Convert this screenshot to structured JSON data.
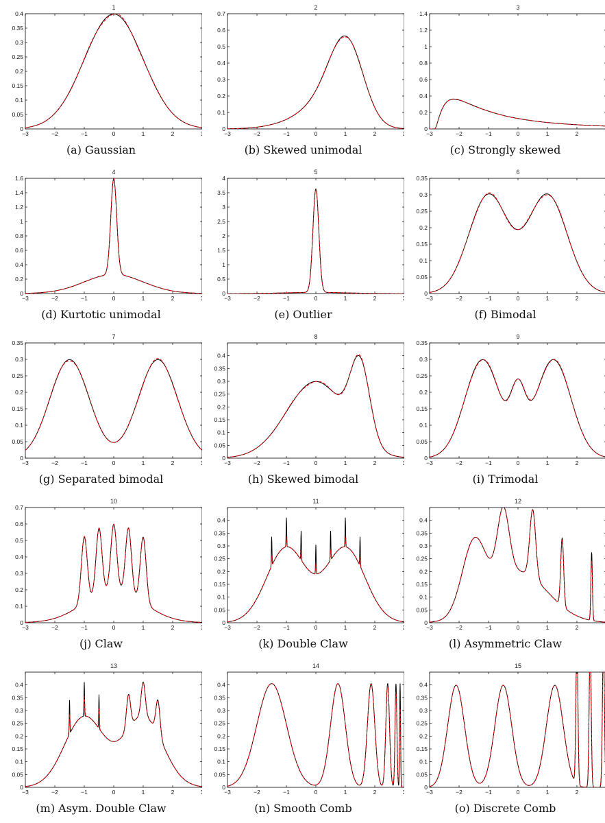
{
  "figure": {
    "colors": {
      "true_density": "#000000",
      "estimate": "#ff0000",
      "axes": "#000000"
    },
    "line_styles": {
      "true_density": "solid",
      "estimate": "dashed"
    }
  },
  "chart_data": [
    {
      "id": "p1",
      "type": "line",
      "title": "1",
      "caption": "(a)  Gaussian",
      "xlim": [
        -3,
        3
      ],
      "ylim": [
        0,
        0.4
      ],
      "xticks": [
        "−3",
        "−2",
        "−1",
        "0",
        "1",
        "2",
        "3"
      ],
      "xtick_values": [
        -3,
        -2,
        -1,
        0,
        1,
        2,
        3
      ],
      "yticks": [
        "0",
        "0.05",
        "0.1",
        "0.15",
        "0.2",
        "0.25",
        "0.3",
        "0.35",
        "0.4"
      ],
      "ytick_values": [
        0,
        0.05,
        0.1,
        0.15,
        0.2,
        0.25,
        0.3,
        0.35,
        0.4
      ],
      "density": {
        "kind": "normal",
        "components": [
          [
            1,
            0,
            1
          ]
        ]
      },
      "series": [
        {
          "role": "true_density"
        },
        {
          "role": "estimate"
        }
      ]
    },
    {
      "id": "p2",
      "type": "line",
      "title": "2",
      "caption": "(b)  Skewed unimodal",
      "xlim": [
        -3,
        3
      ],
      "ylim": [
        0,
        0.7
      ],
      "xticks": [
        "−3",
        "−2",
        "−1",
        "0",
        "1",
        "2",
        "3"
      ],
      "xtick_values": [
        -3,
        -2,
        -1,
        0,
        1,
        2,
        3
      ],
      "yticks": [
        "0",
        "0.1",
        "0.2",
        "0.3",
        "0.4",
        "0.5",
        "0.6",
        "0.7"
      ],
      "ytick_values": [
        0,
        0.1,
        0.2,
        0.3,
        0.4,
        0.5,
        0.6,
        0.7
      ],
      "density": {
        "kind": "normal",
        "components": [
          [
            0.2,
            0,
            1
          ],
          [
            0.2,
            0.5,
            0.6667
          ],
          [
            0.6,
            1.0833,
            0.5556
          ]
        ]
      },
      "series": [
        {
          "role": "true_density"
        },
        {
          "role": "estimate"
        }
      ]
    },
    {
      "id": "p3",
      "type": "line",
      "title": "3",
      "caption": "(c)  Strongly skewed",
      "xlim": [
        -3,
        3
      ],
      "ylim": [
        0,
        1.4
      ],
      "xticks": [
        "−3",
        "−2",
        "−1",
        "0",
        "1",
        "2"
      ],
      "xtick_values": [
        -3,
        -2,
        -1,
        0,
        1,
        2
      ],
      "yticks": [
        "0",
        "0.2",
        "0.4",
        "0.6",
        "0.8",
        "1",
        "1.2",
        "1.4"
      ],
      "ytick_values": [
        0,
        0.2,
        0.4,
        0.6,
        0.8,
        1,
        1.2,
        1.4
      ],
      "density": {
        "kind": "lognormal",
        "shift": -2.85,
        "sigma": 1,
        "mu": 0.6
      },
      "series": [
        {
          "role": "true_density"
        },
        {
          "role": "estimate"
        }
      ]
    },
    {
      "id": "p4",
      "type": "line",
      "title": "4",
      "caption": "(d)  Kurtotic unimodal",
      "xlim": [
        -3,
        3
      ],
      "ylim": [
        0,
        1.6
      ],
      "xticks": [
        "−3",
        "−2",
        "−1",
        "0",
        "1",
        "2",
        "3"
      ],
      "xtick_values": [
        -3,
        -2,
        -1,
        0,
        1,
        2,
        3
      ],
      "yticks": [
        "0",
        "0.2",
        "0.4",
        "0.6",
        "0.8",
        "1",
        "1.2",
        "1.4",
        "1.6"
      ],
      "ytick_values": [
        0,
        0.2,
        0.4,
        0.6,
        0.8,
        1,
        1.2,
        1.4,
        1.6
      ],
      "density": {
        "kind": "normal",
        "components": [
          [
            0.6667,
            0,
            1
          ],
          [
            0.3333,
            0,
            0.1
          ]
        ]
      },
      "series": [
        {
          "role": "true_density"
        },
        {
          "role": "estimate"
        }
      ]
    },
    {
      "id": "p5",
      "type": "line",
      "title": "5",
      "caption": "(e)  Outlier",
      "xlim": [
        -3,
        3
      ],
      "ylim": [
        0,
        4
      ],
      "xticks": [
        "−3",
        "−2",
        "−1",
        "0",
        "1",
        "2",
        "3"
      ],
      "xtick_values": [
        -3,
        -2,
        -1,
        0,
        1,
        2,
        3
      ],
      "yticks": [
        "0",
        "0.5",
        "1",
        "1.5",
        "2",
        "2.5",
        "3",
        "3.5",
        "4"
      ],
      "ytick_values": [
        0,
        0.5,
        1,
        1.5,
        2,
        2.5,
        3,
        3.5,
        4
      ],
      "density": {
        "kind": "normal",
        "components": [
          [
            0.1,
            0,
            1
          ],
          [
            0.9,
            0,
            0.1
          ]
        ]
      },
      "series": [
        {
          "role": "true_density"
        },
        {
          "role": "estimate"
        }
      ]
    },
    {
      "id": "p6",
      "type": "line",
      "title": "6",
      "caption": "(f)  Bimodal",
      "xlim": [
        -3,
        3
      ],
      "ylim": [
        0,
        0.35
      ],
      "xticks": [
        "−3",
        "−2",
        "−1",
        "0",
        "1",
        "2"
      ],
      "xtick_values": [
        -3,
        -2,
        -1,
        0,
        1,
        2
      ],
      "yticks": [
        "0",
        "0.05",
        "0.1",
        "0.15",
        "0.2",
        "0.25",
        "0.3",
        "0.35"
      ],
      "ytick_values": [
        0,
        0.05,
        0.1,
        0.15,
        0.2,
        0.25,
        0.3,
        0.35
      ],
      "density": {
        "kind": "normal",
        "components": [
          [
            0.5,
            -1,
            0.6667
          ],
          [
            0.5,
            1,
            0.6667
          ]
        ]
      },
      "series": [
        {
          "role": "true_density"
        },
        {
          "role": "estimate"
        }
      ]
    },
    {
      "id": "p7",
      "type": "line",
      "title": "7",
      "caption": "(g)  Separated bimodal",
      "xlim": [
        -3,
        3
      ],
      "ylim": [
        0,
        0.35
      ],
      "xticks": [
        "−3",
        "−2",
        "−1",
        "0",
        "1",
        "2",
        "3"
      ],
      "xtick_values": [
        -3,
        -2,
        -1,
        0,
        1,
        2,
        3
      ],
      "yticks": [
        "0",
        "0.05",
        "0.1",
        "0.15",
        "0.2",
        "0.25",
        "0.3",
        "0.35"
      ],
      "ytick_values": [
        0,
        0.05,
        0.1,
        0.15,
        0.2,
        0.25,
        0.3,
        0.35
      ],
      "density": {
        "kind": "normal",
        "components": [
          [
            0.5,
            -1.5,
            0.6667
          ],
          [
            0.5,
            1.5,
            0.6667
          ]
        ]
      },
      "series": [
        {
          "role": "true_density"
        },
        {
          "role": "estimate"
        }
      ]
    },
    {
      "id": "p8",
      "type": "line",
      "title": "8",
      "caption": "(h)  Skewed bimodal",
      "xlim": [
        -3,
        3
      ],
      "ylim": [
        0,
        0.45
      ],
      "xticks": [
        "−3",
        "−2",
        "−1",
        "0",
        "1",
        "2",
        "3"
      ],
      "xtick_values": [
        -3,
        -2,
        -1,
        0,
        1,
        2,
        3
      ],
      "yticks": [
        "0",
        "0.05",
        "0.1",
        "0.15",
        "0.2",
        "0.25",
        "0.3",
        "0.35",
        "0.4"
      ],
      "ytick_values": [
        0,
        0.05,
        0.1,
        0.15,
        0.2,
        0.25,
        0.3,
        0.35,
        0.4
      ],
      "density": {
        "kind": "normal",
        "components": [
          [
            0.75,
            0,
            1
          ],
          [
            0.25,
            1.5,
            0.3333
          ]
        ]
      },
      "series": [
        {
          "role": "true_density"
        },
        {
          "role": "estimate"
        }
      ]
    },
    {
      "id": "p9",
      "type": "line",
      "title": "9",
      "caption": "(i)  Trimodal",
      "xlim": [
        -3,
        3
      ],
      "ylim": [
        0,
        0.35
      ],
      "xticks": [
        "−3",
        "−2",
        "−1",
        "0",
        "1",
        "2"
      ],
      "xtick_values": [
        -3,
        -2,
        -1,
        0,
        1,
        2
      ],
      "yticks": [
        "0",
        "0.05",
        "0.1",
        "0.15",
        "0.2",
        "0.25",
        "0.3",
        "0.35"
      ],
      "ytick_values": [
        0,
        0.05,
        0.1,
        0.15,
        0.2,
        0.25,
        0.3,
        0.35
      ],
      "density": {
        "kind": "normal",
        "components": [
          [
            0.45,
            -1.2,
            0.6
          ],
          [
            0.45,
            1.2,
            0.6
          ],
          [
            0.1,
            0,
            0.25
          ]
        ]
      },
      "series": [
        {
          "role": "true_density"
        },
        {
          "role": "estimate"
        }
      ]
    },
    {
      "id": "p10",
      "type": "line",
      "title": "10",
      "caption": "(j)  Claw",
      "xlim": [
        -3,
        3
      ],
      "ylim": [
        0,
        0.7
      ],
      "xticks": [
        "−3",
        "−2",
        "−1",
        "0",
        "1",
        "2",
        "3"
      ],
      "xtick_values": [
        -3,
        -2,
        -1,
        0,
        1,
        2,
        3
      ],
      "yticks": [
        "0",
        "0.1",
        "0.2",
        "0.3",
        "0.4",
        "0.5",
        "0.6",
        "0.7"
      ],
      "ytick_values": [
        0,
        0.1,
        0.2,
        0.3,
        0.4,
        0.5,
        0.6,
        0.7
      ],
      "density": {
        "kind": "normal",
        "components": [
          [
            0.5,
            0,
            1
          ],
          [
            0.1,
            -1,
            0.1
          ],
          [
            0.1,
            -0.5,
            0.1
          ],
          [
            0.1,
            0,
            0.1
          ],
          [
            0.1,
            0.5,
            0.1
          ],
          [
            0.1,
            1,
            0.1
          ]
        ]
      },
      "series": [
        {
          "role": "true_density"
        },
        {
          "role": "estimate"
        }
      ]
    },
    {
      "id": "p11",
      "type": "line",
      "title": "11",
      "caption": "(k)  Double Claw",
      "xlim": [
        -3,
        3
      ],
      "ylim": [
        0,
        0.45
      ],
      "xticks": [
        "−3",
        "−2",
        "−1",
        "0",
        "1",
        "2",
        "3"
      ],
      "xtick_values": [
        -3,
        -2,
        -1,
        0,
        1,
        2,
        3
      ],
      "yticks": [
        "0",
        "0.05",
        "0.1",
        "0.15",
        "0.2",
        "0.25",
        "0.3",
        "0.35",
        "0.4"
      ],
      "ytick_values": [
        0,
        0.05,
        0.1,
        0.15,
        0.2,
        0.25,
        0.3,
        0.35,
        0.4
      ],
      "density": {
        "kind": "normal",
        "components": [
          [
            0.49,
            -1,
            0.6667
          ],
          [
            0.49,
            1,
            0.6667
          ],
          [
            0.00286,
            -1.5,
            0.01
          ],
          [
            0.00286,
            -1,
            0.01
          ],
          [
            0.00286,
            -0.5,
            0.01
          ],
          [
            0.00286,
            0,
            0.01
          ],
          [
            0.00286,
            0.5,
            0.01
          ],
          [
            0.00286,
            1,
            0.01
          ],
          [
            0.00286,
            1.5,
            0.01
          ]
        ]
      },
      "estimate_mode": "smooth",
      "series": [
        {
          "role": "true_density"
        },
        {
          "role": "estimate"
        }
      ]
    },
    {
      "id": "p12",
      "type": "line",
      "title": "12",
      "caption": "(l)  Asymmetric Claw",
      "xlim": [
        -3,
        3
      ],
      "ylim": [
        0,
        0.45
      ],
      "xticks": [
        "−3",
        "−2",
        "−1",
        "0",
        "1",
        "2"
      ],
      "xtick_values": [
        -3,
        -2,
        -1,
        0,
        1,
        2
      ],
      "yticks": [
        "0",
        "0.05",
        "0.1",
        "0.15",
        "0.2",
        "0.25",
        "0.3",
        "0.35",
        "0.4"
      ],
      "ytick_values": [
        0,
        0.05,
        0.1,
        0.15,
        0.2,
        0.25,
        0.3,
        0.35,
        0.4
      ],
      "density": {
        "kind": "normal",
        "components": [
          [
            0.5,
            0,
            1
          ],
          [
            0.2667,
            -1.5,
            0.4
          ],
          [
            0.1333,
            -0.5,
            0.2
          ],
          [
            0.0667,
            0.5,
            0.1
          ],
          [
            0.0333,
            1.5,
            0.05
          ],
          [
            0.0167,
            2.5,
            0.025
          ]
        ]
      },
      "estimate_mode": "partial",
      "series": [
        {
          "role": "true_density"
        },
        {
          "role": "estimate"
        }
      ]
    },
    {
      "id": "p13",
      "type": "line",
      "title": "13",
      "caption": "(m)  Asym. Double Claw",
      "xlim": [
        -3,
        3
      ],
      "ylim": [
        0,
        0.45
      ],
      "xticks": [
        "−3",
        "−2",
        "−1",
        "0",
        "1",
        "2",
        "3"
      ],
      "xtick_values": [
        -3,
        -2,
        -1,
        0,
        1,
        2,
        3
      ],
      "yticks": [
        "0",
        "0.05",
        "0.1",
        "0.15",
        "0.2",
        "0.25",
        "0.3",
        "0.35",
        "0.4"
      ],
      "ytick_values": [
        0,
        0.05,
        0.1,
        0.15,
        0.2,
        0.25,
        0.3,
        0.35,
        0.4
      ],
      "density": {
        "kind": "normal",
        "components": [
          [
            0.46,
            -1,
            0.6667
          ],
          [
            0.46,
            1,
            0.6667
          ],
          [
            0.00333,
            -1.5,
            0.01
          ],
          [
            0.00333,
            -1,
            0.01
          ],
          [
            0.00333,
            -0.5,
            0.01
          ],
          [
            0.0233,
            0.5,
            0.07
          ],
          [
            0.0233,
            1,
            0.07
          ],
          [
            0.0233,
            1.5,
            0.07
          ]
        ]
      },
      "estimate_mode": "partial",
      "series": [
        {
          "role": "true_density"
        },
        {
          "role": "estimate"
        }
      ]
    },
    {
      "id": "p14",
      "type": "line",
      "title": "14",
      "caption": "(n)  Smooth Comb",
      "xlim": [
        -3,
        3
      ],
      "ylim": [
        0,
        0.45
      ],
      "xticks": [
        "−3",
        "−2",
        "−1",
        "0",
        "1",
        "2",
        "3"
      ],
      "xtick_values": [
        -3,
        -2,
        -1,
        0,
        1,
        2,
        3
      ],
      "yticks": [
        "0",
        "0.05",
        "0.1",
        "0.15",
        "0.2",
        "0.25",
        "0.3",
        "0.35",
        "0.4"
      ],
      "ytick_values": [
        0,
        0.05,
        0.1,
        0.15,
        0.2,
        0.25,
        0.3,
        0.35,
        0.4
      ],
      "density": {
        "kind": "normal",
        "components": [
          [
            0.5079,
            -1.5,
            0.5
          ],
          [
            0.254,
            0.75,
            0.25
          ],
          [
            0.127,
            1.875,
            0.125
          ],
          [
            0.0635,
            2.4375,
            0.0625
          ],
          [
            0.0317,
            2.71875,
            0.03125
          ],
          [
            0.0159,
            2.859375,
            0.015625
          ]
        ]
      },
      "estimate_mode": "partial",
      "series": [
        {
          "role": "true_density"
        },
        {
          "role": "estimate"
        }
      ]
    },
    {
      "id": "p15",
      "type": "line",
      "title": "15",
      "caption": "(o)  Discrete Comb",
      "xlim": [
        -3,
        3
      ],
      "ylim": [
        0,
        0.45
      ],
      "xticks": [
        "−3",
        "−2",
        "−1",
        "0",
        "1",
        "2"
      ],
      "xtick_values": [
        -3,
        -2,
        -1,
        0,
        1,
        2
      ],
      "yticks": [
        "0",
        "0.05",
        "0.1",
        "0.15",
        "0.2",
        "0.25",
        "0.3",
        "0.35",
        "0.4"
      ],
      "ytick_values": [
        0,
        0.05,
        0.1,
        0.15,
        0.2,
        0.25,
        0.3,
        0.35,
        0.4
      ],
      "density": {
        "kind": "normal",
        "components": [
          [
            0.2857,
            -2.1,
            0.2857
          ],
          [
            0.2857,
            -0.5,
            0.2857
          ],
          [
            0.2857,
            1.25,
            0.2857
          ],
          [
            0.0476,
            2.0,
            0.0333
          ],
          [
            0.0476,
            2.45,
            0.0333
          ],
          [
            0.0476,
            2.9,
            0.0333
          ]
        ]
      },
      "estimate_mode": "partial",
      "series": [
        {
          "role": "true_density"
        },
        {
          "role": "estimate"
        }
      ]
    }
  ]
}
